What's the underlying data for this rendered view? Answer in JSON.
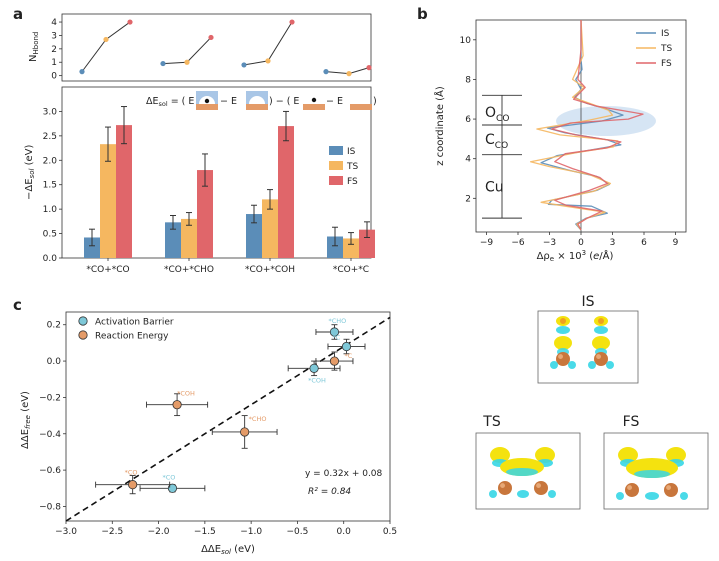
{
  "panels": {
    "a": "a",
    "b": "b",
    "c": "c"
  },
  "colors": {
    "IS": "#5b8db8",
    "TS": "#f5b760",
    "FS": "#e0666a",
    "activation": "#7ec8d8",
    "reaction": "#e49b68",
    "surface_yellow": "#f4e20f",
    "surface_cyan": "#36d6e6",
    "atom_brown": "#c8763c"
  },
  "chart_data": [
    {
      "id": "a-top",
      "type": "line",
      "ylabel": "N_Hbond",
      "yticks": [
        0,
        1,
        2,
        3,
        4
      ],
      "ylim": [
        -0.4,
        4.6
      ],
      "groups": [
        {
          "category": "*CO+*CO",
          "values": [
            0.3,
            2.7,
            4.0
          ]
        },
        {
          "category": "*CO+*CHO",
          "values": [
            0.9,
            1.0,
            2.85
          ]
        },
        {
          "category": "*CO+*COH",
          "values": [
            0.8,
            1.1,
            4.0
          ]
        },
        {
          "category": "*CO+*C",
          "values": [
            0.3,
            0.15,
            0.6
          ]
        }
      ],
      "series_names": [
        "IS",
        "TS",
        "FS"
      ]
    },
    {
      "id": "a-bottom",
      "type": "bar",
      "ylabel": "−ΔE_sol (eV)",
      "ylim": [
        0,
        3.5
      ],
      "yticks": [
        0.0,
        0.5,
        1.0,
        1.5,
        2.0,
        2.5,
        3.0
      ],
      "categories": [
        "*CO+*CO",
        "*CO+*CHO",
        "*CO+*COH",
        "*CO+*C"
      ],
      "series": [
        {
          "name": "IS",
          "values": [
            0.42,
            0.73,
            0.9,
            0.44
          ],
          "errors": [
            0.17,
            0.14,
            0.18,
            0.19
          ]
        },
        {
          "name": "TS",
          "values": [
            2.33,
            0.8,
            1.2,
            0.4
          ],
          "errors": [
            0.35,
            0.13,
            0.2,
            0.12
          ]
        },
        {
          "name": "FS",
          "values": [
            2.72,
            1.8,
            2.7,
            0.58
          ],
          "errors": [
            0.38,
            0.33,
            0.3,
            0.16
          ]
        }
      ],
      "annotation": {
        "prefix": "ΔE",
        "sub": "sol",
        "eq": " = ( E",
        "minus1": " − E",
        "mid": " ) − ( E",
        "minus2": " − E",
        "close": " )"
      }
    },
    {
      "id": "b",
      "type": "line",
      "xlabel": "Δρ_e × 10³ (e/Å)",
      "ylabel": "z coordinate (Å)",
      "xlim": [
        -10,
        10
      ],
      "ylim": [
        0.3,
        11
      ],
      "xticks": [
        -9,
        -6,
        -3,
        0,
        3,
        6,
        9
      ],
      "yticks": [
        2,
        4,
        6,
        8,
        10
      ],
      "region_labels": [
        {
          "text": "O",
          "sub": "CO",
          "z": 6.35
        },
        {
          "text": "C",
          "sub": "CO",
          "z": 5.0
        },
        {
          "text": "Cu",
          "sub": "",
          "z": 2.6
        }
      ],
      "region_bounds_z": [
        7.2,
        5.7,
        4.2,
        1.0
      ],
      "series": [
        {
          "name": "IS",
          "points": [
            [
              0,
              11
            ],
            [
              0,
              9
            ],
            [
              0.1,
              8.5
            ],
            [
              -0.5,
              8.0
            ],
            [
              0,
              7.5
            ],
            [
              -0.6,
              7.1
            ],
            [
              0.5,
              6.8
            ],
            [
              2.2,
              6.55
            ],
            [
              4.0,
              6.2
            ],
            [
              2.0,
              5.9
            ],
            [
              -3.2,
              5.55
            ],
            [
              -1.5,
              5.3
            ],
            [
              2.5,
              4.95
            ],
            [
              3.8,
              4.7
            ],
            [
              0.5,
              4.4
            ],
            [
              -2.3,
              4.15
            ],
            [
              -3.8,
              3.8
            ],
            [
              -1.0,
              3.4
            ],
            [
              1.5,
              3.1
            ],
            [
              2.7,
              2.7
            ],
            [
              1.5,
              2.4
            ],
            [
              -2.8,
              1.9
            ],
            [
              -3.1,
              1.7
            ],
            [
              1.0,
              1.6
            ],
            [
              2.5,
              1.25
            ],
            [
              0.5,
              1.0
            ],
            [
              -0.5,
              0.7
            ],
            [
              0,
              0.4
            ]
          ]
        },
        {
          "name": "TS",
          "points": [
            [
              0,
              11
            ],
            [
              0.2,
              9.2
            ],
            [
              -0.8,
              8.0
            ],
            [
              0.3,
              7.6
            ],
            [
              -0.8,
              7.1
            ],
            [
              0.8,
              6.8
            ],
            [
              2.6,
              6.45
            ],
            [
              3.0,
              6.2
            ],
            [
              0.8,
              5.95
            ],
            [
              -4.2,
              5.5
            ],
            [
              -2.0,
              5.2
            ],
            [
              3.5,
              4.9
            ],
            [
              3.1,
              4.6
            ],
            [
              -0.5,
              4.3
            ],
            [
              -4.8,
              3.85
            ],
            [
              -3.0,
              3.6
            ],
            [
              0.8,
              3.2
            ],
            [
              2.8,
              2.75
            ],
            [
              1.2,
              2.35
            ],
            [
              -3.8,
              1.8
            ],
            [
              -1.5,
              1.6
            ],
            [
              2.3,
              1.3
            ],
            [
              0.6,
              1.0
            ],
            [
              -0.4,
              0.7
            ],
            [
              0,
              0.4
            ]
          ]
        },
        {
          "name": "FS",
          "points": [
            [
              0,
              11
            ],
            [
              0,
              9.5
            ],
            [
              -0.3,
              8.0
            ],
            [
              0.4,
              7.6
            ],
            [
              -0.7,
              7.0
            ],
            [
              1.5,
              6.65
            ],
            [
              5.9,
              6.25
            ],
            [
              4.5,
              6.0
            ],
            [
              -1.0,
              5.8
            ],
            [
              -2.8,
              5.5
            ],
            [
              -0.5,
              5.2
            ],
            [
              3.8,
              4.85
            ],
            [
              2.5,
              4.55
            ],
            [
              -1.5,
              4.25
            ],
            [
              -2.5,
              3.85
            ],
            [
              -0.8,
              3.5
            ],
            [
              1.8,
              3.05
            ],
            [
              2.5,
              2.75
            ],
            [
              0.8,
              2.4
            ],
            [
              -2.5,
              1.9
            ],
            [
              -1.4,
              1.65
            ],
            [
              2.0,
              1.35
            ],
            [
              0.6,
              1.0
            ],
            [
              -0.3,
              0.7
            ],
            [
              0,
              0.4
            ]
          ]
        }
      ]
    },
    {
      "id": "c",
      "type": "scatter",
      "xlabel": "ΔΔE_sol (eV)",
      "ylabel": "ΔΔE_free (eV)",
      "xlim": [
        -3.0,
        0.5
      ],
      "ylim": [
        -0.88,
        0.27
      ],
      "xticks": [
        -3.0,
        -2.5,
        -2.0,
        -1.5,
        -1.0,
        -0.5,
        0.0,
        0.5
      ],
      "yticks": [
        -0.8,
        -0.6,
        -0.4,
        -0.2,
        0.0,
        0.2
      ],
      "fit": {
        "slope": 0.32,
        "intercept": 0.08,
        "equation": "y = 0.32x + 0.08",
        "r2_label": "R² = 0.84"
      },
      "series": [
        {
          "name": "Activation Barrier",
          "points": [
            {
              "label": "*CHO",
              "x": -0.1,
              "y": 0.16,
              "xerr": 0.2,
              "yerr": 0.04
            },
            {
              "label": "*C",
              "x": 0.03,
              "y": 0.08,
              "xerr": 0.2,
              "yerr": 0.04
            },
            {
              "label": "*COH",
              "x": -0.32,
              "y": -0.04,
              "xerr": 0.28,
              "yerr": 0.04
            },
            {
              "label": "*CO",
              "x": -1.85,
              "y": -0.7,
              "xerr": 0.35,
              "yerr": 0.02
            }
          ]
        },
        {
          "name": "Reaction Energy",
          "points": [
            {
              "label": "*C",
              "x": -0.1,
              "y": 0.0,
              "xerr": 0.2,
              "yerr": 0.05
            },
            {
              "label": "*COH",
              "x": -1.8,
              "y": -0.24,
              "xerr": 0.33,
              "yerr": 0.06
            },
            {
              "label": "*CHO",
              "x": -1.07,
              "y": -0.39,
              "xerr": 0.35,
              "yerr": 0.09
            },
            {
              "label": "*CO",
              "x": -2.28,
              "y": -0.68,
              "xerr": 0.4,
              "yerr": 0.05
            }
          ]
        }
      ]
    }
  ],
  "structures": {
    "IS": "IS",
    "TS": "TS",
    "FS": "FS"
  }
}
